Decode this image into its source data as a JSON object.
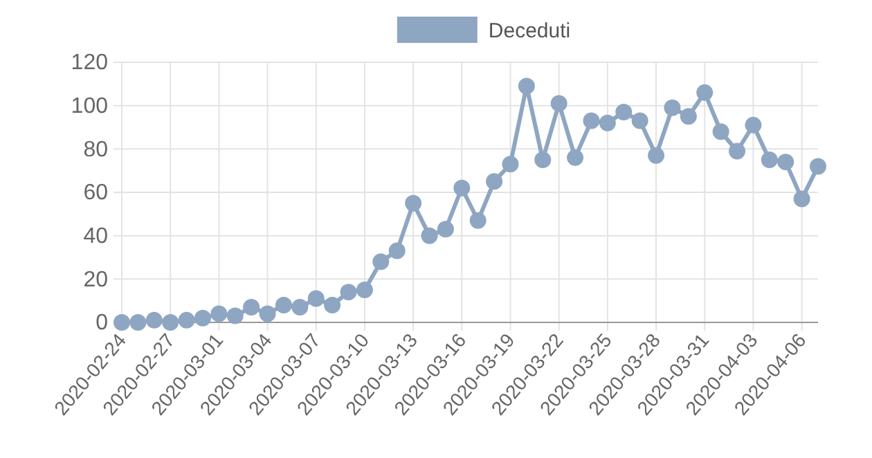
{
  "chart_data": {
    "type": "line",
    "categories": [
      "2020-02-24",
      null,
      null,
      "2020-02-27",
      null,
      null,
      "2020-03-01",
      null,
      null,
      "2020-03-04",
      null,
      null,
      "2020-03-07",
      null,
      null,
      "2020-03-10",
      null,
      null,
      "2020-03-13",
      null,
      null,
      "2020-03-16",
      null,
      null,
      "2020-03-19",
      null,
      null,
      "2020-03-22",
      null,
      null,
      "2020-03-25",
      null,
      null,
      "2020-03-28",
      null,
      null,
      "2020-03-31",
      null,
      null,
      "2020-04-03",
      null,
      null,
      "2020-04-06",
      null
    ],
    "series": [
      {
        "name": "Deceduti",
        "color": "#8ea6c2",
        "values": [
          0,
          0,
          1,
          0,
          1,
          2,
          4,
          3,
          7,
          4,
          8,
          7,
          11,
          8,
          14,
          15,
          28,
          33,
          55,
          40,
          43,
          62,
          47,
          65,
          73,
          109,
          75,
          101,
          76,
          93,
          92,
          97,
          93,
          77,
          99,
          95,
          106,
          88,
          79,
          91,
          75,
          74,
          57,
          72
        ]
      }
    ],
    "ylim": [
      0,
      120
    ],
    "yticks": [
      0,
      20,
      40,
      60,
      80,
      100,
      120
    ],
    "grid": true,
    "legend": "top",
    "marker": "circle",
    "line_style": "solid"
  }
}
